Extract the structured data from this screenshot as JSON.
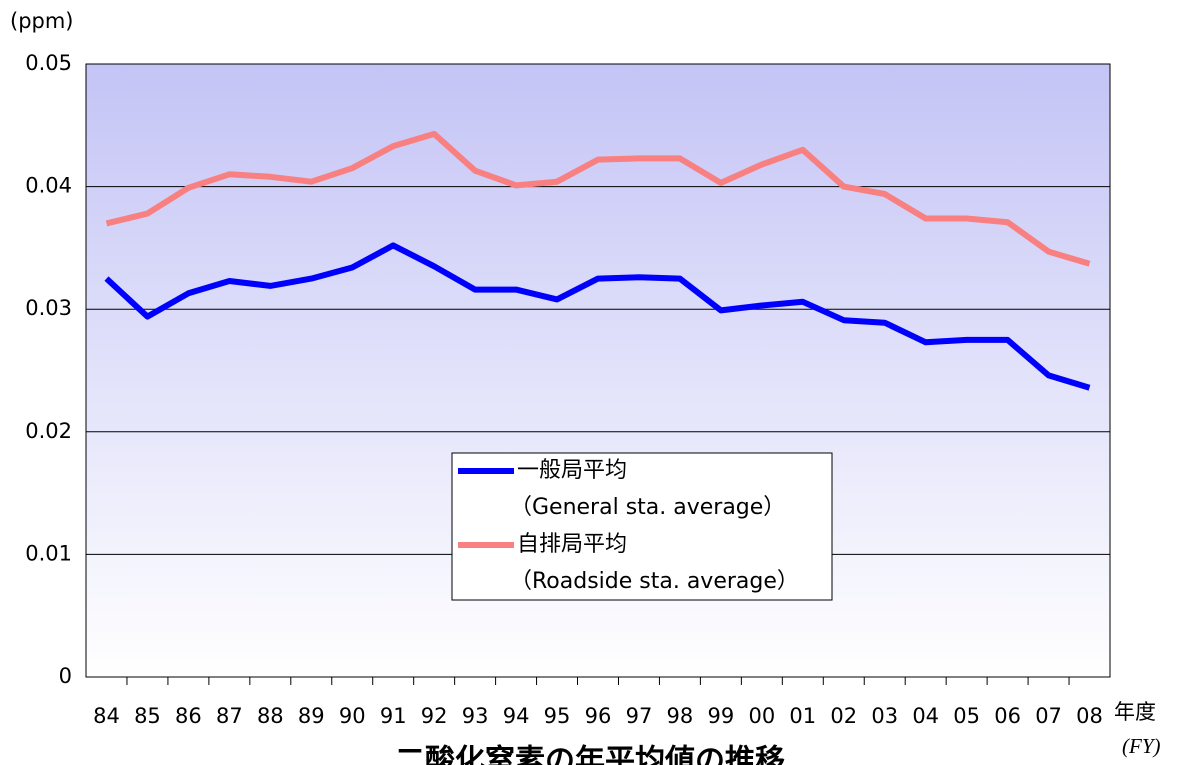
{
  "chart_data": {
    "type": "line",
    "title": "二酸化窒素の年平均値の推移",
    "y_label": "(ppm)",
    "x_label": "年度",
    "x_label_en": "(FY)",
    "categories": [
      "84",
      "85",
      "86",
      "87",
      "88",
      "89",
      "90",
      "91",
      "92",
      "93",
      "94",
      "95",
      "96",
      "97",
      "98",
      "99",
      "00",
      "01",
      "02",
      "03",
      "04",
      "05",
      "06",
      "07",
      "08"
    ],
    "series": [
      {
        "name": "一般局平均",
        "subname": "（General sta. average）",
        "color": "#0000ff",
        "values": [
          0.0325,
          0.0294,
          0.0313,
          0.0323,
          0.0319,
          0.0325,
          0.0334,
          0.0352,
          0.0335,
          0.0316,
          0.0316,
          0.0308,
          0.0325,
          0.0326,
          0.0325,
          0.0299,
          0.0303,
          0.0306,
          0.0291,
          0.0289,
          0.0273,
          0.0275,
          0.0275,
          0.0246,
          0.0236
        ]
      },
      {
        "name": "自排局平均",
        "subname": "（Roadside sta. average）",
        "color": "#f88080",
        "values": [
          0.037,
          0.0378,
          0.0399,
          0.041,
          0.0408,
          0.0404,
          0.0415,
          0.0433,
          0.0443,
          0.0413,
          0.0401,
          0.0404,
          0.0422,
          0.0423,
          0.0423,
          0.0403,
          0.0418,
          0.043,
          0.04,
          0.0394,
          0.0374,
          0.0374,
          0.0371,
          0.0347,
          0.0337
        ]
      }
    ],
    "ylim": [
      0,
      0.05
    ],
    "yticks": [
      0,
      0.01,
      0.02,
      0.03,
      0.04,
      0.05
    ],
    "grid": true
  }
}
